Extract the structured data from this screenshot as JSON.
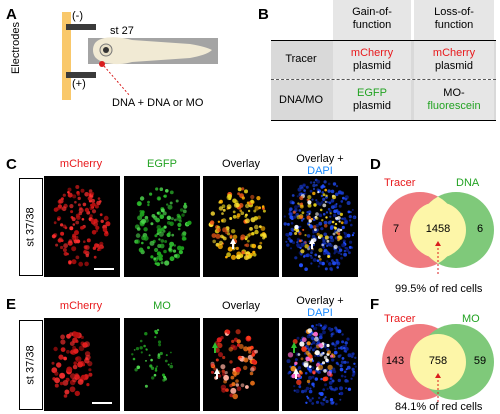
{
  "panels": {
    "a": {
      "letter": "A",
      "stage": "st 27",
      "minus": "(-)",
      "plus": "(+)",
      "electrodes": "Electrodes",
      "injection": "DNA + DNA or MO"
    },
    "b": {
      "letter": "B",
      "col_gain": "Gain-of-function",
      "col_loss": "Loss-of-function",
      "row_tracer": "Tracer",
      "row_dnamo": "DNA/MO",
      "tracer_gain_1": "mCherry",
      "tracer_gain_2": "plasmid",
      "tracer_loss_1": "mCherry",
      "tracer_loss_2": "plasmid",
      "dnamo_gain_1": "EGFP",
      "dnamo_gain_2": "plasmid",
      "dnamo_loss_1": "MO-",
      "dnamo_loss_2": "fluorescein"
    },
    "c": {
      "letter": "C",
      "stage": "st 37/38",
      "h1": "mCherry",
      "h2": "EGFP",
      "h3": "Overlay",
      "h4a": "Overlay +",
      "h4b": "DAPI"
    },
    "d": {
      "letter": "D",
      "left_label": "Tracer",
      "right_label": "DNA",
      "left_only": "7",
      "overlap": "1458",
      "right_only": "6",
      "caption": "99.5% of red cells"
    },
    "e": {
      "letter": "E",
      "stage": "st 37/38",
      "h1": "mCherry",
      "h2": "MO",
      "h3": "Overlay",
      "h4a": "Overlay +",
      "h4b": "DAPI"
    },
    "f": {
      "letter": "F",
      "left_label": "Tracer",
      "right_label": "MO",
      "left_only": "143",
      "overlap": "758",
      "right_only": "59",
      "caption": "84.1% of red cells"
    }
  },
  "colors": {
    "red": "#e8191c",
    "green": "#23a323",
    "blue": "#1b8bff",
    "venn_red": "#f07b80",
    "venn_green": "#7fc97a",
    "venn_overlap": "#fdf6a8"
  }
}
